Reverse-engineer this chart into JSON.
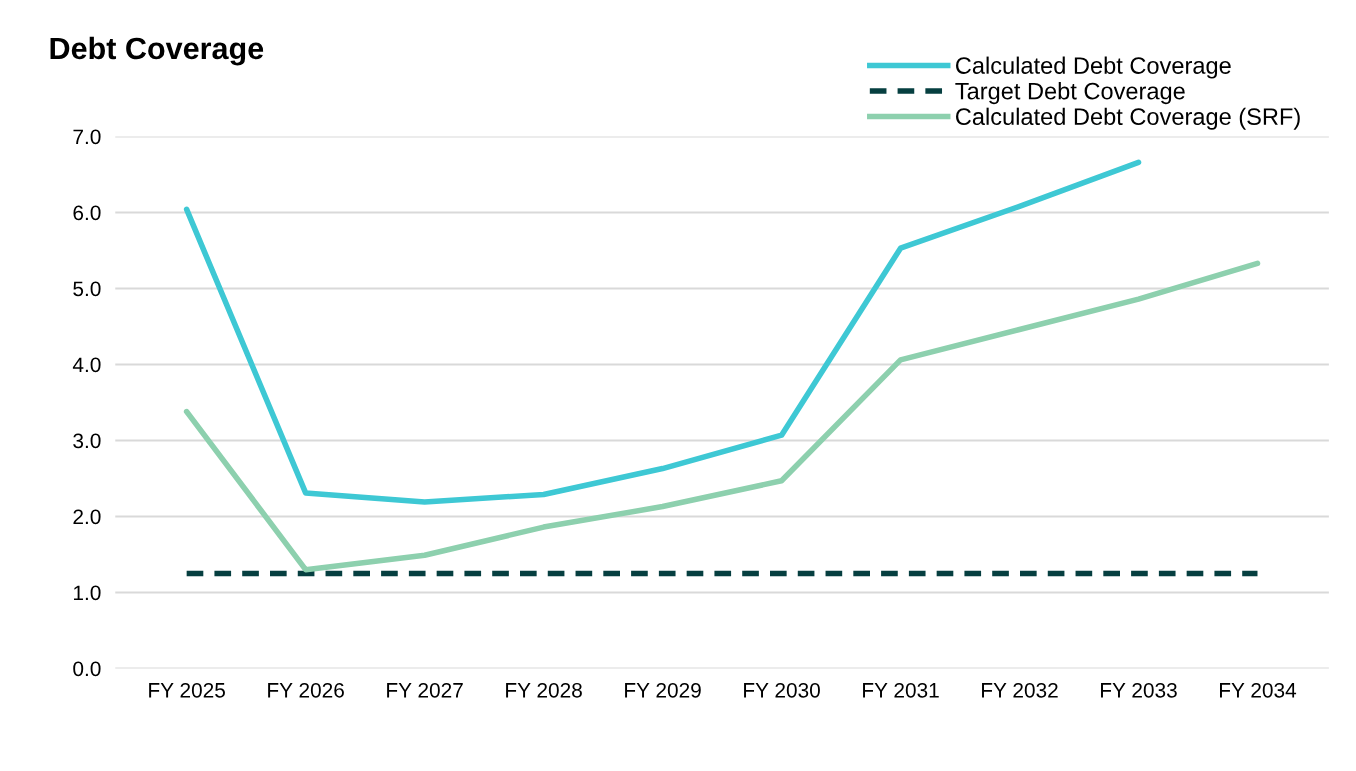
{
  "chart_data": {
    "type": "line",
    "title": "Debt Coverage",
    "categories": [
      "FY 2025",
      "FY 2026",
      "FY 2027",
      "FY 2028",
      "FY 2029",
      "FY 2030",
      "FY 2031",
      "FY 2032",
      "FY 2033",
      "FY 2034"
    ],
    "series": [
      {
        "name": "Calculated Debt Coverage",
        "color": "#3ec8d4",
        "line_style": "solid",
        "values": [
          6.04,
          2.31,
          2.19,
          2.29,
          2.63,
          3.07,
          5.53,
          6.08,
          6.66,
          null
        ]
      },
      {
        "name": "Target Debt Coverage",
        "color": "#063f40",
        "line_style": "dashed",
        "values": [
          1.25,
          1.25,
          1.25,
          1.25,
          1.25,
          1.25,
          1.25,
          1.25,
          1.25,
          1.25
        ]
      },
      {
        "name": "Calculated Debt Coverage (SRF)",
        "color": "#8dd0ae",
        "line_style": "solid",
        "values": [
          3.38,
          1.3,
          1.49,
          1.86,
          2.13,
          2.47,
          4.06,
          4.46,
          4.86,
          5.33
        ]
      }
    ],
    "ylim": [
      0,
      7
    ],
    "yticks": [
      {
        "value": 0,
        "label": "0.0"
      },
      {
        "value": 1,
        "label": "1.0"
      },
      {
        "value": 2,
        "label": "2.0"
      },
      {
        "value": 3,
        "label": "3.0"
      },
      {
        "value": 4,
        "label": "4.0"
      },
      {
        "value": 5,
        "label": "5.0"
      },
      {
        "value": 6,
        "label": "6.0"
      },
      {
        "value": 7,
        "label": "7.0"
      }
    ],
    "grid": "y",
    "legend": "top right",
    "marker": "none"
  }
}
